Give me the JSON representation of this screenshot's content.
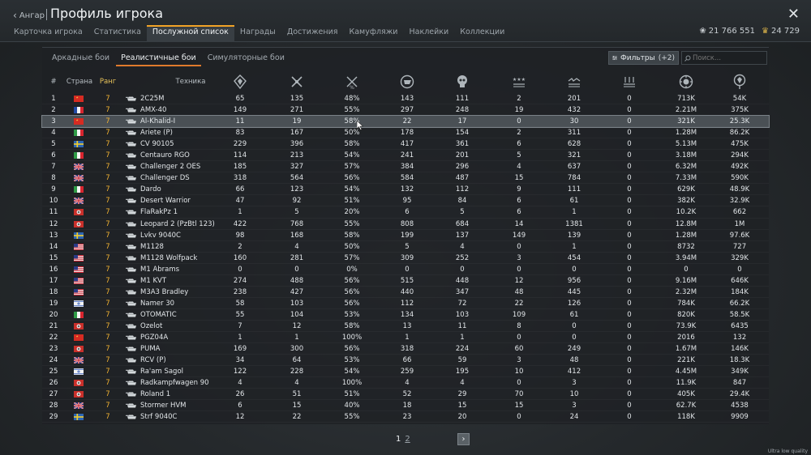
{
  "header": {
    "back_label": "Ангар",
    "title": "Профиль игрока",
    "tabs": [
      "Карточка игрока",
      "Статистика",
      "Послужной список",
      "Награды",
      "Достижения",
      "Камуфляжи",
      "Наклейки",
      "Коллекции"
    ],
    "active_tab": "Послужной список",
    "silver_lions": "21 766 551",
    "golden_eagles": "24 729"
  },
  "modes": {
    "items": [
      "Аркадные бои",
      "Реалистичные бои",
      "Симуляторные бои"
    ],
    "active": "Реалистичные бои"
  },
  "filters": {
    "label": "Фильтры",
    "count": "(+2)"
  },
  "search": {
    "placeholder": "Поиск..."
  },
  "columns": {
    "number": "#",
    "country": "Страна",
    "rank": "Ранг",
    "vehicle": "Техника",
    "icons": [
      "battles-icon",
      "victories-icon",
      "win-rate-icon",
      "respawns-icon",
      "deaths-icon",
      "air-kills-icon",
      "ground-kills-icon",
      "naval-kills-icon",
      "research-points-icon",
      "silver-lions-icon"
    ]
  },
  "colors": {
    "accent": "#f1a326",
    "rank": "#f1b232",
    "selected_row": "#4a5055"
  },
  "rows": [
    {
      "n": "1",
      "flag": "cn",
      "rank": "7",
      "name": "2C25M",
      "c": [
        "65",
        "135",
        "48%",
        "143",
        "111",
        "2",
        "201",
        "0",
        "713K",
        "54K"
      ]
    },
    {
      "n": "2",
      "flag": "fr",
      "rank": "7",
      "name": "AMX-40",
      "c": [
        "149",
        "271",
        "55%",
        "297",
        "248",
        "19",
        "432",
        "0",
        "2.21M",
        "375K"
      ]
    },
    {
      "n": "3",
      "flag": "cn",
      "rank": "7",
      "name": "Al-Khalid-I",
      "c": [
        "11",
        "19",
        "58%",
        "22",
        "17",
        "0",
        "30",
        "0",
        "321K",
        "25.3K"
      ],
      "selected": true
    },
    {
      "n": "4",
      "flag": "it",
      "rank": "7",
      "name": "Ariete (P)",
      "c": [
        "83",
        "167",
        "50%",
        "178",
        "154",
        "2",
        "311",
        "0",
        "1.28M",
        "86.2K"
      ]
    },
    {
      "n": "5",
      "flag": "se",
      "rank": "7",
      "name": "CV 90105",
      "c": [
        "229",
        "396",
        "58%",
        "417",
        "361",
        "6",
        "628",
        "0",
        "5.13M",
        "475K"
      ]
    },
    {
      "n": "6",
      "flag": "it",
      "rank": "7",
      "name": "Centauro RGO",
      "c": [
        "114",
        "213",
        "54%",
        "241",
        "201",
        "5",
        "321",
        "0",
        "3.18M",
        "294K"
      ]
    },
    {
      "n": "7",
      "flag": "gb",
      "rank": "7",
      "name": "Challenger 2 OES",
      "c": [
        "185",
        "327",
        "57%",
        "384",
        "296",
        "4",
        "637",
        "0",
        "6.32M",
        "492K"
      ]
    },
    {
      "n": "8",
      "flag": "gb",
      "rank": "7",
      "name": "Challenger DS",
      "c": [
        "318",
        "564",
        "56%",
        "584",
        "487",
        "15",
        "784",
        "0",
        "7.33M",
        "590K"
      ]
    },
    {
      "n": "9",
      "flag": "it",
      "rank": "7",
      "name": "Dardo",
      "c": [
        "66",
        "123",
        "54%",
        "132",
        "112",
        "9",
        "111",
        "0",
        "629K",
        "48.9K"
      ]
    },
    {
      "n": "10",
      "flag": "gb",
      "rank": "7",
      "name": "Desert Warrior",
      "c": [
        "47",
        "92",
        "51%",
        "95",
        "84",
        "6",
        "61",
        "0",
        "382K",
        "32.9K"
      ]
    },
    {
      "n": "11",
      "flag": "de",
      "rank": "7",
      "name": "FlaRakPz 1",
      "c": [
        "1",
        "5",
        "20%",
        "6",
        "5",
        "6",
        "1",
        "0",
        "10.2K",
        "662"
      ]
    },
    {
      "n": "12",
      "flag": "de",
      "rank": "7",
      "name": "Leopard 2 (PzBtl 123)",
      "c": [
        "422",
        "768",
        "55%",
        "808",
        "684",
        "14",
        "1381",
        "0",
        "12.8M",
        "1M"
      ]
    },
    {
      "n": "13",
      "flag": "se",
      "rank": "7",
      "name": "Lvkv 9040C",
      "c": [
        "98",
        "168",
        "58%",
        "199",
        "137",
        "149",
        "139",
        "0",
        "1.28M",
        "97.6K"
      ]
    },
    {
      "n": "14",
      "flag": "us",
      "rank": "7",
      "name": "M1128",
      "c": [
        "2",
        "4",
        "50%",
        "5",
        "4",
        "0",
        "1",
        "0",
        "8732",
        "727"
      ]
    },
    {
      "n": "15",
      "flag": "us",
      "rank": "7",
      "name": "M1128 Wolfpack",
      "c": [
        "160",
        "281",
        "57%",
        "309",
        "252",
        "3",
        "454",
        "0",
        "3.94M",
        "329K"
      ]
    },
    {
      "n": "16",
      "flag": "us",
      "rank": "7",
      "name": "M1 Abrams",
      "c": [
        "0",
        "0",
        "0%",
        "0",
        "0",
        "0",
        "0",
        "0",
        "0",
        "0"
      ]
    },
    {
      "n": "17",
      "flag": "us",
      "rank": "7",
      "name": "M1 KVT",
      "c": [
        "274",
        "488",
        "56%",
        "515",
        "448",
        "12",
        "956",
        "0",
        "9.16M",
        "646K"
      ]
    },
    {
      "n": "18",
      "flag": "us",
      "rank": "7",
      "name": "M3A3 Bradley",
      "c": [
        "238",
        "427",
        "56%",
        "440",
        "347",
        "48",
        "445",
        "0",
        "2.32M",
        "184K"
      ]
    },
    {
      "n": "19",
      "flag": "il",
      "rank": "7",
      "name": "Namer 30",
      "c": [
        "58",
        "103",
        "56%",
        "112",
        "72",
        "22",
        "126",
        "0",
        "784K",
        "66.2K"
      ]
    },
    {
      "n": "20",
      "flag": "it",
      "rank": "7",
      "name": "OTOMATIC",
      "c": [
        "55",
        "104",
        "53%",
        "134",
        "103",
        "109",
        "61",
        "0",
        "820K",
        "58.5K"
      ]
    },
    {
      "n": "21",
      "flag": "de",
      "rank": "7",
      "name": "Ozelot",
      "c": [
        "7",
        "12",
        "58%",
        "13",
        "11",
        "8",
        "0",
        "0",
        "73.9K",
        "6435"
      ]
    },
    {
      "n": "22",
      "flag": "cn",
      "rank": "7",
      "name": "PGZ04A",
      "c": [
        "1",
        "1",
        "100%",
        "1",
        "1",
        "0",
        "0",
        "0",
        "2016",
        "132"
      ]
    },
    {
      "n": "23",
      "flag": "de",
      "rank": "7",
      "name": "PUMA",
      "c": [
        "169",
        "300",
        "56%",
        "318",
        "224",
        "60",
        "249",
        "0",
        "1.67M",
        "146K"
      ]
    },
    {
      "n": "24",
      "flag": "gb",
      "rank": "7",
      "name": "RCV (P)",
      "c": [
        "34",
        "64",
        "53%",
        "66",
        "59",
        "3",
        "48",
        "0",
        "221K",
        "18.3K"
      ]
    },
    {
      "n": "25",
      "flag": "il",
      "rank": "7",
      "name": "Ra'am Sagol",
      "c": [
        "122",
        "228",
        "54%",
        "259",
        "195",
        "10",
        "412",
        "0",
        "4.45M",
        "349K"
      ]
    },
    {
      "n": "26",
      "flag": "de",
      "rank": "7",
      "name": "Radkampfwagen 90",
      "c": [
        "4",
        "4",
        "100%",
        "4",
        "4",
        "0",
        "3",
        "0",
        "11.9K",
        "847"
      ]
    },
    {
      "n": "27",
      "flag": "de",
      "rank": "7",
      "name": "Roland 1",
      "c": [
        "26",
        "51",
        "51%",
        "52",
        "29",
        "70",
        "10",
        "0",
        "405K",
        "29.4K"
      ]
    },
    {
      "n": "28",
      "flag": "gb",
      "rank": "7",
      "name": "Stormer HVM",
      "c": [
        "6",
        "15",
        "40%",
        "18",
        "15",
        "15",
        "3",
        "0",
        "62.7K",
        "4538"
      ]
    },
    {
      "n": "29",
      "flag": "se",
      "rank": "7",
      "name": "Strf 9040C",
      "c": [
        "12",
        "22",
        "55%",
        "23",
        "20",
        "0",
        "24",
        "0",
        "118K",
        "9909"
      ]
    }
  ],
  "pager": {
    "current": "1",
    "next_page": "2"
  },
  "quality_label": "Ultra low quality"
}
